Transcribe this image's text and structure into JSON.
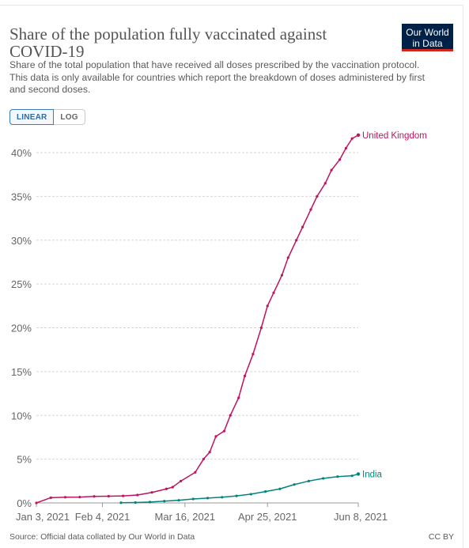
{
  "header": {
    "title": "Share of the population fully vaccinated against COVID-19",
    "subtitle": "Share of the total population that have received all doses prescribed by the vaccination protocol. This data is only available for countries which report the breakdown of doses administered by first and second doses.",
    "logo_line1": "Our World",
    "logo_line2": "in Data"
  },
  "controls": {
    "linear_label": "LINEAR",
    "log_label": "LOG"
  },
  "footer": {
    "source": "Source: Official data collated by Our World in Data",
    "license": "CC BY"
  },
  "colors": {
    "uk": "#c0135f",
    "india": "#00847e",
    "grid": "#d6d6d6",
    "axis_text": "#666666"
  },
  "chart_data": {
    "type": "line",
    "title": "Share of the population fully vaccinated against COVID-19",
    "ylim": [
      0,
      40
    ],
    "y_ticks": [
      0,
      5,
      10,
      15,
      20,
      25,
      30,
      35,
      40
    ],
    "y_tick_labels": [
      "0%",
      "5%",
      "10%",
      "15%",
      "20%",
      "25%",
      "30%",
      "35%",
      "40%"
    ],
    "x_tick_labels": [
      "Jan 3, 2021",
      "Feb 4, 2021",
      "Mar 16, 2021",
      "Apr 25, 2021",
      "Jun 8, 2021"
    ],
    "x_tick_dates": [
      "2021-01-03",
      "2021-02-04",
      "2021-03-16",
      "2021-04-25",
      "2021-06-08"
    ],
    "xlim": [
      "2021-01-03",
      "2021-06-08"
    ],
    "grid": true,
    "series": [
      {
        "name": "United Kingdom",
        "color": "#c0135f",
        "points": [
          [
            "2021-01-03",
            0
          ],
          [
            "2021-01-10",
            0.6
          ],
          [
            "2021-01-17",
            0.65
          ],
          [
            "2021-01-24",
            0.67
          ],
          [
            "2021-01-31",
            0.75
          ],
          [
            "2021-02-07",
            0.77
          ],
          [
            "2021-02-14",
            0.8
          ],
          [
            "2021-02-21",
            0.9
          ],
          [
            "2021-02-28",
            1.2
          ],
          [
            "2021-03-07",
            1.6
          ],
          [
            "2021-03-10",
            1.8
          ],
          [
            "2021-03-14",
            2.5
          ],
          [
            "2021-03-21",
            3.5
          ],
          [
            "2021-03-25",
            5.0
          ],
          [
            "2021-03-28",
            5.8
          ],
          [
            "2021-03-31",
            7.6
          ],
          [
            "2021-04-04",
            8.2
          ],
          [
            "2021-04-07",
            10.0
          ],
          [
            "2021-04-11",
            12.0
          ],
          [
            "2021-04-14",
            14.5
          ],
          [
            "2021-04-18",
            17.0
          ],
          [
            "2021-04-22",
            20.0
          ],
          [
            "2021-04-25",
            22.5
          ],
          [
            "2021-04-28",
            24.0
          ],
          [
            "2021-05-02",
            26.0
          ],
          [
            "2021-05-05",
            28.0
          ],
          [
            "2021-05-09",
            30.0
          ],
          [
            "2021-05-12",
            31.5
          ],
          [
            "2021-05-16",
            33.5
          ],
          [
            "2021-05-19",
            35.0
          ],
          [
            "2021-05-23",
            36.5
          ],
          [
            "2021-05-26",
            38.0
          ],
          [
            "2021-05-30",
            39.2
          ],
          [
            "2021-06-02",
            40.5
          ],
          [
            "2021-06-05",
            41.6
          ],
          [
            "2021-06-08",
            42.0
          ]
        ]
      },
      {
        "name": "India",
        "color": "#00847e",
        "points": [
          [
            "2021-02-13",
            0.02
          ],
          [
            "2021-02-20",
            0.05
          ],
          [
            "2021-02-27",
            0.1
          ],
          [
            "2021-03-06",
            0.2
          ],
          [
            "2021-03-13",
            0.3
          ],
          [
            "2021-03-20",
            0.45
          ],
          [
            "2021-03-27",
            0.55
          ],
          [
            "2021-04-03",
            0.65
          ],
          [
            "2021-04-10",
            0.8
          ],
          [
            "2021-04-17",
            1.0
          ],
          [
            "2021-04-24",
            1.3
          ],
          [
            "2021-05-01",
            1.6
          ],
          [
            "2021-05-08",
            2.1
          ],
          [
            "2021-05-15",
            2.5
          ],
          [
            "2021-05-22",
            2.8
          ],
          [
            "2021-05-29",
            3.0
          ],
          [
            "2021-06-05",
            3.1
          ],
          [
            "2021-06-08",
            3.3
          ]
        ]
      }
    ]
  }
}
